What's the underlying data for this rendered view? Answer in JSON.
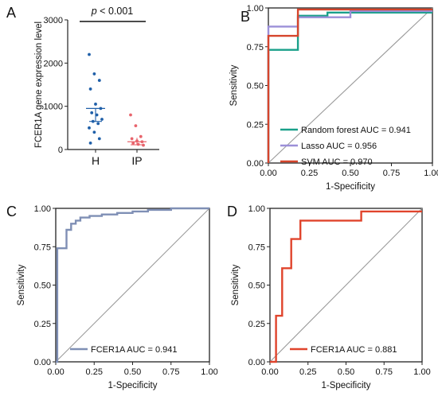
{
  "panels": [
    {
      "letter": "A"
    },
    {
      "letter": "B"
    },
    {
      "letter": "C"
    },
    {
      "letter": "D"
    }
  ],
  "chart_data": [
    {
      "type": "scatter",
      "panel": "A",
      "annotation_italic": "p",
      "annotation_rest": " < 0.001",
      "ylabel": "FCER1A gene expression level",
      "ylim": [
        0,
        3000
      ],
      "yticks": [
        "0",
        "1000",
        "2000",
        "3000"
      ],
      "categories": [
        "H",
        "IP"
      ],
      "groups": [
        {
          "name": "H",
          "color": "#1f5fa8",
          "values": [
            2200,
            1750,
            1600,
            1400,
            1050,
            950,
            850,
            800,
            700,
            650,
            600,
            500,
            400,
            250,
            150
          ],
          "mean": 950,
          "sem_low": 650,
          "sem_high": 950
        },
        {
          "name": "IP",
          "color": "#e8646c",
          "values": [
            800,
            550,
            300,
            250,
            200,
            180,
            150,
            120,
            100
          ],
          "mean": 180,
          "sem_low": 110,
          "sem_high": 270
        }
      ]
    },
    {
      "type": "line",
      "panel": "B",
      "xlabel": "1-Specificity",
      "ylabel": "Sensitivity",
      "xlim": [
        0,
        1
      ],
      "ylim": [
        0,
        1
      ],
      "xticks": [
        "0.00",
        "0.25",
        "0.50",
        "0.75",
        "1.00"
      ],
      "yticks": [
        "0.00",
        "0.25",
        "0.50",
        "0.75",
        "1.00"
      ],
      "series": [
        {
          "name": "Random forest AUC = 0.941",
          "color": "#1aa08a",
          "x": [
            0,
            0,
            0.18,
            0.18,
            0.36,
            0.36,
            1
          ],
          "y": [
            0,
            0.73,
            0.73,
            0.95,
            0.95,
            0.97,
            0.97
          ]
        },
        {
          "name": "Lasso AUC = 0.956",
          "color": "#9b8fd8",
          "x": [
            0,
            0,
            0.18,
            0.18,
            0.5,
            0.5,
            1
          ],
          "y": [
            0,
            0.88,
            0.88,
            0.94,
            0.94,
            0.98,
            0.98
          ]
        },
        {
          "name": "SVM AUC = 0.970",
          "color": "#d6452c",
          "x": [
            0,
            0,
            0.18,
            0.18,
            1
          ],
          "y": [
            0,
            0.82,
            0.82,
            0.99,
            0.99
          ]
        }
      ]
    },
    {
      "type": "line",
      "panel": "C",
      "xlabel": "1-Specificity",
      "ylabel": "Sensitivity",
      "xlim": [
        0,
        1
      ],
      "ylim": [
        0,
        1
      ],
      "xticks": [
        "0.00",
        "0.25",
        "0.50",
        "0.75",
        "1.00"
      ],
      "yticks": [
        "0.00",
        "0.25",
        "0.50",
        "0.75",
        "1.00"
      ],
      "series": [
        {
          "name": "FCER1A  AUC = 0.941",
          "color": "#7f8fb5",
          "x": [
            0,
            0.01,
            0.01,
            0.07,
            0.07,
            0.1,
            0.1,
            0.13,
            0.13,
            0.16,
            0.16,
            0.22,
            0.22,
            0.3,
            0.3,
            0.4,
            0.4,
            0.5,
            0.5,
            0.6,
            0.6,
            0.75,
            0.75,
            1.0
          ],
          "y": [
            0,
            0,
            0.74,
            0.74,
            0.86,
            0.86,
            0.9,
            0.9,
            0.92,
            0.92,
            0.94,
            0.94,
            0.95,
            0.95,
            0.96,
            0.96,
            0.97,
            0.97,
            0.98,
            0.98,
            0.99,
            0.99,
            1.0,
            1.0
          ]
        }
      ]
    },
    {
      "type": "line",
      "panel": "D",
      "xlabel": "1-Specificity",
      "ylabel": "Sensitivity",
      "xlim": [
        0,
        1
      ],
      "ylim": [
        0,
        1
      ],
      "xticks": [
        "0.00",
        "0.25",
        "0.50",
        "0.75",
        "1.00"
      ],
      "yticks": [
        "0.00",
        "0.25",
        "0.50",
        "0.75",
        "1.00"
      ],
      "series": [
        {
          "name": "FCER1A  AUC = 0.881",
          "color": "#e0442c",
          "x": [
            0,
            0.04,
            0.04,
            0.08,
            0.08,
            0.14,
            0.14,
            0.2,
            0.2,
            0.25,
            0.25,
            0.6,
            0.6,
            1.0
          ],
          "y": [
            0,
            0,
            0.3,
            0.3,
            0.61,
            0.61,
            0.8,
            0.8,
            0.92,
            0.92,
            0.92,
            0.92,
            0.98,
            0.98
          ]
        }
      ]
    }
  ]
}
